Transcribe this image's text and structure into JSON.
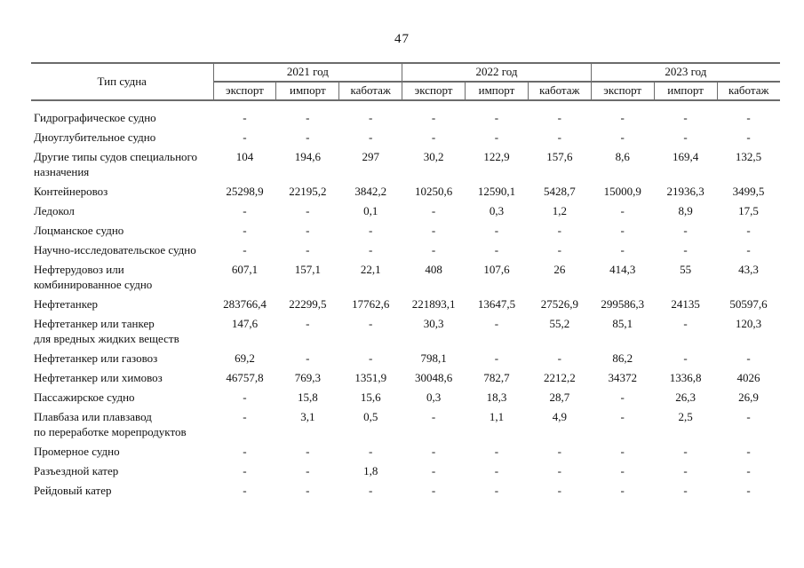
{
  "page": {
    "number": "47"
  },
  "table": {
    "col1_header": "Тип судна",
    "year_groups": [
      {
        "label": "2021 год"
      },
      {
        "label": "2022 год"
      },
      {
        "label": "2023 год"
      }
    ],
    "sub_headers": [
      "экспорт",
      "импорт",
      "каботаж"
    ],
    "rows": [
      {
        "label": [
          "Гидрографическое судно"
        ],
        "values": [
          "-",
          "-",
          "-",
          "-",
          "-",
          "-",
          "-",
          "-",
          "-"
        ]
      },
      {
        "label": [
          "Дноуглубительное судно"
        ],
        "values": [
          "-",
          "-",
          "-",
          "-",
          "-",
          "-",
          "-",
          "-",
          "-"
        ]
      },
      {
        "label": [
          "Другие типы судов специального",
          "назначения"
        ],
        "values": [
          "104",
          "194,6",
          "297",
          "30,2",
          "122,9",
          "157,6",
          "8,6",
          "169,4",
          "132,5"
        ]
      },
      {
        "label": [
          "Контейнеровоз"
        ],
        "values": [
          "25298,9",
          "22195,2",
          "3842,2",
          "10250,6",
          "12590,1",
          "5428,7",
          "15000,9",
          "21936,3",
          "3499,5"
        ]
      },
      {
        "label": [
          "Ледокол"
        ],
        "values": [
          "-",
          "-",
          "0,1",
          "-",
          "0,3",
          "1,2",
          "-",
          "8,9",
          "17,5"
        ]
      },
      {
        "label": [
          "Лоцманское судно"
        ],
        "values": [
          "-",
          "-",
          "-",
          "-",
          "-",
          "-",
          "-",
          "-",
          "-"
        ]
      },
      {
        "label": [
          "Научно-исследовательское судно"
        ],
        "values": [
          "-",
          "-",
          "-",
          "-",
          "-",
          "-",
          "-",
          "-",
          "-"
        ]
      },
      {
        "label": [
          "Нефтерудовоз или",
          "комбинированное судно"
        ],
        "values": [
          "607,1",
          "157,1",
          "22,1",
          "408",
          "107,6",
          "26",
          "414,3",
          "55",
          "43,3"
        ]
      },
      {
        "label": [
          "Нефтетанкер"
        ],
        "values": [
          "283766,4",
          "22299,5",
          "17762,6",
          "221893,1",
          "13647,5",
          "27526,9",
          "299586,3",
          "24135",
          "50597,6"
        ]
      },
      {
        "label": [
          "Нефтетанкер или танкер",
          "для вредных жидких веществ"
        ],
        "values": [
          "147,6",
          "-",
          "-",
          "30,3",
          "-",
          "55,2",
          "85,1",
          "-",
          "120,3"
        ]
      },
      {
        "label": [
          "Нефтетанкер или газовоз"
        ],
        "values": [
          "69,2",
          "-",
          "-",
          "798,1",
          "-",
          "-",
          "86,2",
          "-",
          "-"
        ]
      },
      {
        "label": [
          "Нефтетанкер или химовоз"
        ],
        "values": [
          "46757,8",
          "769,3",
          "1351,9",
          "30048,6",
          "782,7",
          "2212,2",
          "34372",
          "1336,8",
          "4026"
        ]
      },
      {
        "label": [
          "Пассажирское судно"
        ],
        "values": [
          "-",
          "15,8",
          "15,6",
          "0,3",
          "18,3",
          "28,7",
          "-",
          "26,3",
          "26,9"
        ]
      },
      {
        "label": [
          "Плавбаза или плавзавод",
          "по переработке морепродуктов"
        ],
        "values": [
          "-",
          "3,1",
          "0,5",
          "-",
          "1,1",
          "4,9",
          "-",
          "2,5",
          "-"
        ]
      },
      {
        "label": [
          "Промерное судно"
        ],
        "values": [
          "-",
          "-",
          "-",
          "-",
          "-",
          "-",
          "-",
          "-",
          "-"
        ]
      },
      {
        "label": [
          "Разъездной катер"
        ],
        "values": [
          "-",
          "-",
          "1,8",
          "-",
          "-",
          "-",
          "-",
          "-",
          "-"
        ]
      },
      {
        "label": [
          "Рейдовый катер"
        ],
        "values": [
          "-",
          "-",
          "-",
          "-",
          "-",
          "-",
          "-",
          "-",
          "-"
        ]
      }
    ]
  }
}
